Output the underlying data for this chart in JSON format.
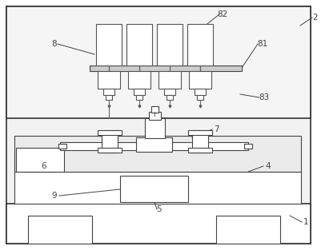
{
  "bg_color": "#ffffff",
  "line_color": "#666666",
  "label_color": "#444444",
  "figsize": [
    4.01,
    3.13
  ],
  "dpi": 100
}
